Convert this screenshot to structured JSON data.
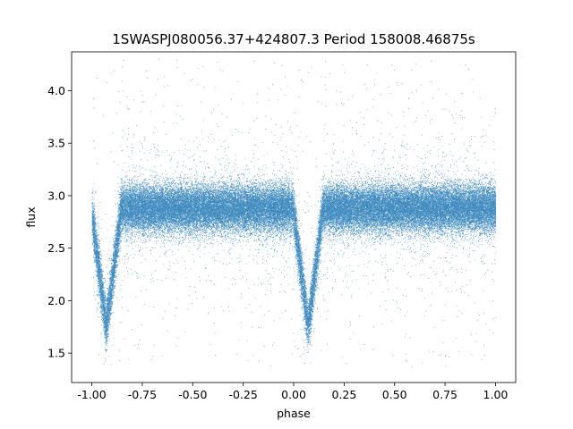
{
  "chart_data": {
    "type": "scatter",
    "title": "1SWASPJ080056.37+424807.3 Period 158008.46875s",
    "xlabel": "phase",
    "ylabel": "flux",
    "xlim": [
      -1.1,
      1.1
    ],
    "ylim": [
      1.22,
      4.37
    ],
    "xticks": [
      "-1.00",
      "-0.75",
      "-0.50",
      "-0.25",
      "0.00",
      "0.25",
      "0.50",
      "0.75",
      "1.00"
    ],
    "xtick_values": [
      -1.0,
      -0.75,
      -0.5,
      -0.25,
      0.0,
      0.25,
      0.5,
      0.75,
      1.0
    ],
    "yticks": [
      "1.5",
      "2.0",
      "2.5",
      "3.0",
      "3.5",
      "4.0"
    ],
    "ytick_values": [
      1.5,
      2.0,
      2.5,
      3.0,
      3.5,
      4.0
    ],
    "grid": false,
    "marker_color": "#1f77b4",
    "series": [
      {
        "x_range": [
          -1.0,
          1.0
        ],
        "baseline_flux": 2.88,
        "primary_eclipse": {
          "phase": 0.07,
          "min_flux": 1.75
        },
        "secondary_eclipse": {
          "phase": -0.93,
          "min_flux": 1.75
        },
        "points_estimated": 60000
      }
    ]
  }
}
